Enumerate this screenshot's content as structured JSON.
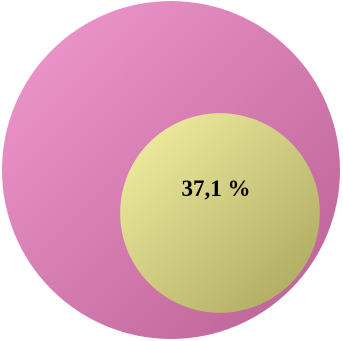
{
  "chart_data": {
    "type": "pie",
    "subtype": "nested-proportional-circles",
    "outer_value": 100,
    "inner_value": 37.1,
    "label": "37,1 %",
    "colors": {
      "outer_light": "#f29bd0",
      "outer_dark": "#b85e92",
      "inner_light": "#f5f3a6",
      "inner_dark": "#a8a35a"
    }
  }
}
